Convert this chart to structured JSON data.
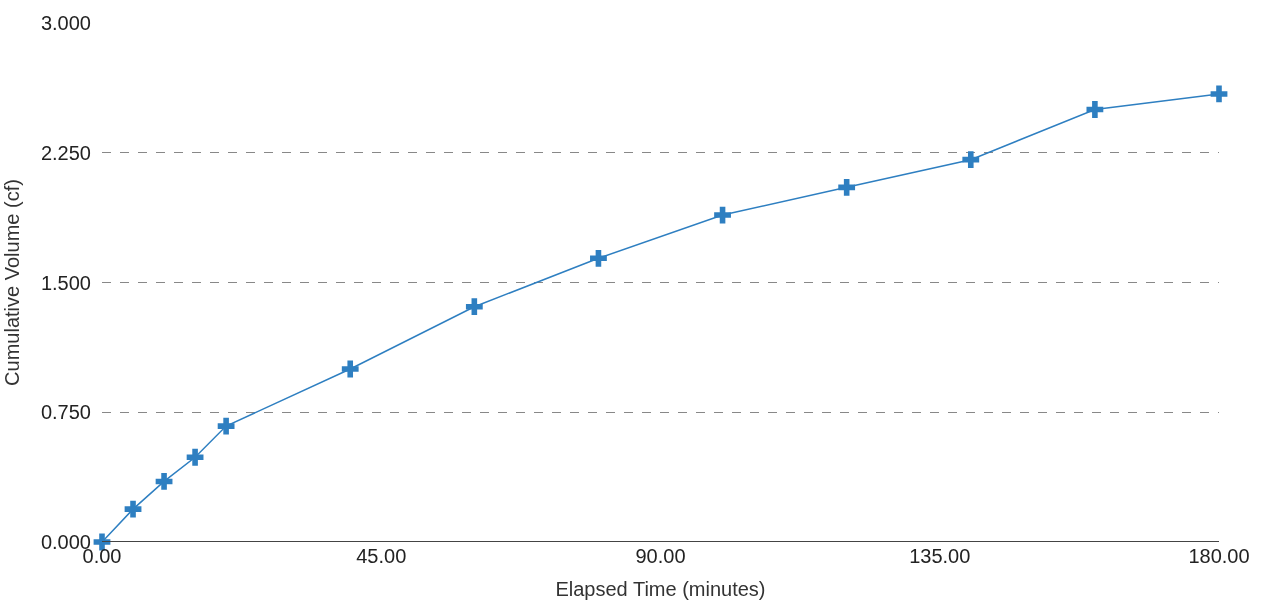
{
  "chart_data": {
    "type": "line",
    "xlabel": "Elapsed Time (minutes)",
    "ylabel": "Cumulative Volume (cf)",
    "x": [
      0,
      5,
      10,
      15,
      20,
      40,
      60,
      80,
      100,
      120,
      140,
      160,
      180
    ],
    "series": [
      {
        "color": "#2e7fc1",
        "values": [
          0,
          0.19,
          0.35,
          0.49,
          0.67,
          1.0,
          1.36,
          1.64,
          1.89,
          2.05,
          2.21,
          2.5,
          2.59
        ]
      }
    ],
    "xlim": [
      0,
      180
    ],
    "xticks": [
      {
        "value": 0,
        "label": "0.00"
      },
      {
        "value": 45,
        "label": "45.00"
      },
      {
        "value": 90,
        "label": "90.00"
      },
      {
        "value": 135,
        "label": "135.00"
      },
      {
        "value": 180,
        "label": "180.00"
      }
    ],
    "ylim": [
      0,
      3
    ],
    "yticks": [
      {
        "value": 0,
        "label": "0.000"
      },
      {
        "value": 0.75,
        "label": "0.750"
      },
      {
        "value": 1.5,
        "label": "1.500"
      },
      {
        "value": 2.25,
        "label": "2.250"
      },
      {
        "value": 3,
        "label": "3.000"
      }
    ],
    "grid": "y",
    "marker": "cross",
    "line_style": "solid"
  }
}
